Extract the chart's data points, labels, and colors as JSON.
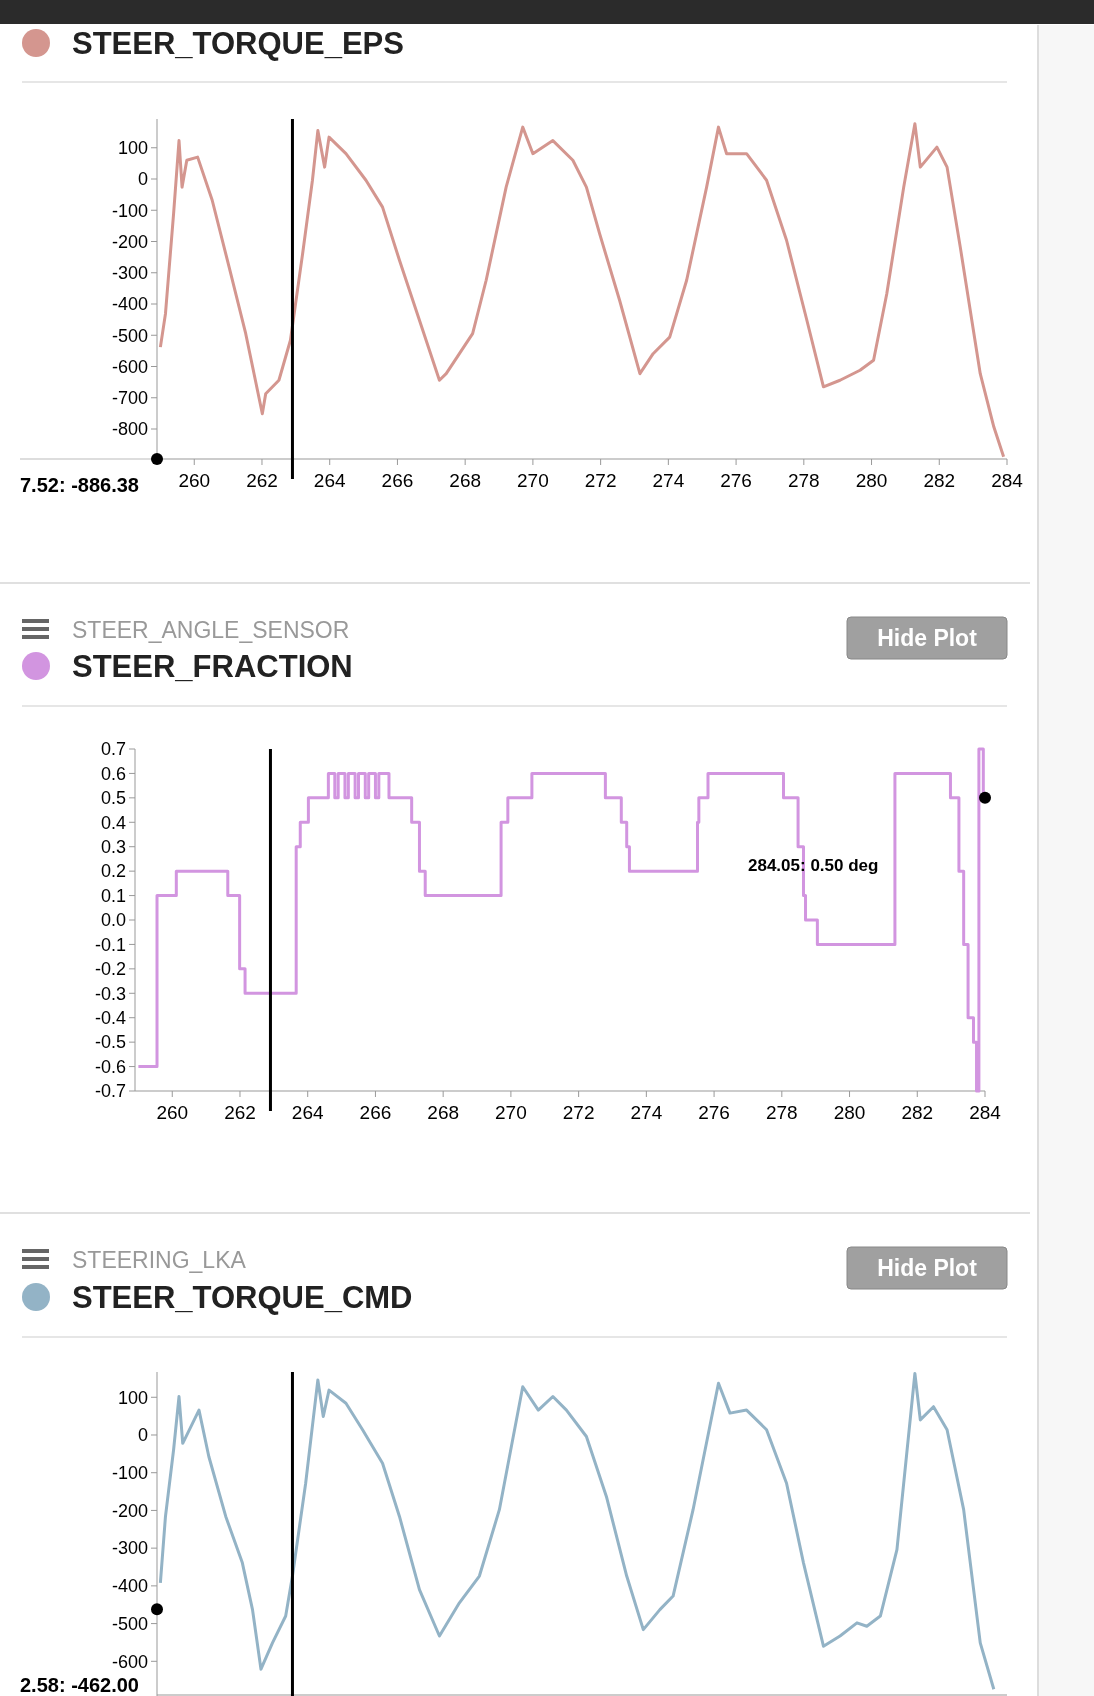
{
  "chart_data": [
    {
      "type": "line",
      "legend": "top left",
      "xlim": [
        258.9,
        284
      ],
      "xticks": [
        260,
        262,
        264,
        266,
        268,
        270,
        272,
        274,
        276,
        278,
        280,
        282,
        284
      ],
      "ylim": [
        -896,
        192
      ],
      "yticks": [
        -800,
        -700,
        -600,
        -500,
        -400,
        -300,
        -200,
        -100,
        0,
        100
      ],
      "x": [
        259.0,
        259.15,
        259.39,
        259.55,
        259.64,
        259.78,
        260.1,
        260.53,
        261.03,
        261.52,
        262.01,
        262.11,
        262.5,
        262.84,
        263.2,
        263.49,
        263.65,
        263.85,
        263.98,
        264.48,
        265.07,
        265.56,
        266.06,
        266.65,
        267.24,
        267.44,
        267.83,
        268.22,
        268.62,
        269.21,
        269.7,
        270.0,
        270.59,
        271.18,
        271.58,
        271.97,
        272.56,
        273.16,
        273.55,
        274.04,
        274.54,
        275.13,
        275.48,
        275.72,
        276.31,
        276.9,
        277.49,
        278.09,
        278.58,
        279.07,
        279.66,
        280.06,
        280.45,
        280.95,
        281.28,
        281.44,
        281.93,
        282.23,
        282.62,
        283.21,
        283.61,
        283.9
      ],
      "series": [
        {
          "name": "STEER_TORQUE_EPS",
          "color": "#d4968f",
          "values": [
            -538,
            -431,
            -111,
            123,
            -26,
            60,
            70,
            -68,
            -282,
            -495,
            -751,
            -687,
            -644,
            -516,
            -239,
            -4,
            155,
            38,
            134,
            81,
            -4,
            -90,
            -260,
            -452,
            -644,
            -623,
            -559,
            -495,
            -324,
            -26,
            166,
            81,
            123,
            60,
            -26,
            -175,
            -388,
            -623,
            -559,
            -506,
            -324,
            -26,
            166,
            81,
            81,
            -4,
            -196,
            -452,
            -665,
            -644,
            -612,
            -580,
            -367,
            -26,
            177,
            38,
            102,
            38,
            -218,
            -623,
            -793,
            -889
          ]
        }
      ],
      "ref_lines": [
        {
          "axis": "x",
          "value": 262.9,
          "color": "#000000"
        }
      ],
      "annotations": [
        "7.52: -886.38"
      ]
    },
    {
      "type": "step",
      "title": "STEER_ANGLE_SENSOR",
      "legend": "top left",
      "xlim": [
        258.9,
        284
      ],
      "xticks": [
        260,
        262,
        264,
        266,
        268,
        270,
        272,
        274,
        276,
        278,
        280,
        282,
        284
      ],
      "ylim": [
        -0.7,
        0.7
      ],
      "yticks": [
        -0.7,
        -0.6,
        -0.5,
        -0.4,
        -0.3,
        -0.2,
        -0.1,
        {
          "value": 0,
          "label": "0.0"
        },
        0.1,
        0.2,
        0.3,
        0.4,
        0.5,
        0.6,
        0.7
      ],
      "x": [
        259.0,
        259.55,
        260.12,
        261.64,
        261.99,
        262.15,
        263.66,
        263.78,
        264.02,
        264.61,
        264.8,
        264.9,
        265.1,
        265.2,
        265.4,
        265.5,
        265.7,
        265.8,
        266.0,
        266.1,
        266.4,
        267.07,
        267.3,
        267.47,
        269.71,
        269.91,
        270.62,
        272.79,
        273.26,
        273.42,
        273.5,
        275.51,
        275.55,
        275.82,
        278.05,
        278.48,
        278.64,
        278.7,
        279.05,
        281.34,
        282.98,
        283.23,
        283.37,
        283.5,
        283.66,
        283.75,
        283.82,
        283.95
      ],
      "series": [
        {
          "name": "STEER_FRACTION",
          "color": "#d295e0",
          "values": [
            -0.6,
            0.1,
            0.2,
            0.1,
            -0.2,
            -0.3,
            0.3,
            0.4,
            0.5,
            0.6,
            0.5,
            0.6,
            0.5,
            0.6,
            0.5,
            0.6,
            0.5,
            0.6,
            0.5,
            0.6,
            0.5,
            0.4,
            0.2,
            0.1,
            0.4,
            0.5,
            0.6,
            0.5,
            0.4,
            0.3,
            0.2,
            0.4,
            0.5,
            0.6,
            0.5,
            0.3,
            0.1,
            0.0,
            -0.1,
            0.6,
            0.5,
            0.2,
            -0.1,
            -0.4,
            -0.5,
            -0.7,
            0.7,
            0.5
          ]
        }
      ],
      "ref_lines": [
        {
          "axis": "x",
          "value": 262.9,
          "color": "#000000"
        }
      ],
      "annotations": [
        "284.05: 0.50 deg",
        "Hide Plot"
      ]
    },
    {
      "type": "line",
      "title": "STEERING_LKA",
      "legend": "top left",
      "tick_labels": "y",
      "xlim": [
        258.9,
        284
      ],
      "ylim": [
        -692,
        167
      ],
      "yticks": [
        -600,
        -500,
        -400,
        -300,
        -200,
        -100,
        0,
        100
      ],
      "x": [
        259.0,
        259.15,
        259.39,
        259.55,
        259.66,
        260.14,
        260.43,
        260.93,
        261.42,
        261.72,
        261.97,
        262.31,
        262.7,
        262.9,
        263.29,
        263.65,
        263.81,
        263.98,
        264.48,
        264.97,
        265.56,
        266.06,
        266.65,
        267.24,
        267.83,
        268.42,
        269.01,
        269.7,
        270.16,
        270.59,
        270.99,
        271.58,
        272.17,
        272.77,
        273.26,
        273.75,
        274.14,
        274.73,
        275.48,
        275.82,
        276.31,
        276.9,
        277.49,
        277.99,
        278.58,
        279.07,
        279.57,
        279.86,
        280.26,
        280.75,
        281.28,
        281.44,
        281.83,
        282.23,
        282.72,
        283.21,
        283.61
      ],
      "series": [
        {
          "name": "STEER_TORQUE_CMD",
          "color": "#93b3c6",
          "values": [
            -392,
            -216,
            -39,
            102,
            -22,
            66,
            -57,
            -216,
            -339,
            -463,
            -621,
            -551,
            -480,
            -374,
            -128,
            146,
            49,
            119,
            84,
            14,
            -75,
            -216,
            -410,
            -533,
            -445,
            -374,
            -198,
            128,
            66,
            102,
            66,
            -4,
            -163,
            -374,
            -516,
            -463,
            -427,
            -198,
            137,
            58,
            66,
            14,
            -128,
            -339,
            -560,
            -533,
            -498,
            -507,
            -480,
            -304,
            163,
            40,
            75,
            14,
            -198,
            -551,
            -674
          ]
        }
      ],
      "ref_lines": [
        {
          "axis": "x",
          "value": 262.9,
          "color": "#000000"
        }
      ],
      "annotations": [
        "2.58: -462.00",
        "Hide Plot"
      ]
    }
  ]
}
